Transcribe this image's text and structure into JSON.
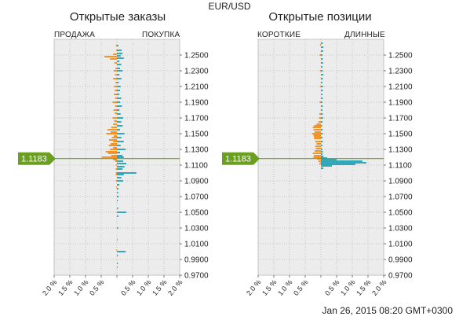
{
  "header": {
    "title": "EUR/USD"
  },
  "footer": {
    "timestamp": "Jan 26, 2015 08:20 GMT+0300"
  },
  "colors": {
    "sell": "#f28a14",
    "buy": "#1fa0b4",
    "marker": "#6aa01e",
    "plot_bg": "#ececec",
    "grid": "#b5b5b5"
  },
  "chart_data": [
    {
      "type": "bar",
      "orientation": "horizontal-diverging",
      "title": "Открытые заказы",
      "left_label": "ПРОДАЖА",
      "right_label": "ПОКУПКА",
      "ylim": [
        0.97,
        1.27
      ],
      "y_ticks": [
        "1.2500",
        "1.2300",
        "1.2100",
        "1.1900",
        "1.1700",
        "1.1500",
        "1.1300",
        "1.1100",
        "1.0900",
        "1.0700",
        "1.0500",
        "1.0300",
        "1.0100",
        "0.9900",
        "0.9700"
      ],
      "x_ticks": [
        "2.0 %",
        "1.5 %",
        "1.0 %",
        "0.5 %",
        "",
        "0.5 %",
        "1.0 %",
        "1.5 %",
        "2.0 %"
      ],
      "xlim_percent": [
        -2.0,
        2.0
      ],
      "current_price": "1.1183",
      "series": [
        {
          "name": "ПРОДАЖА",
          "points": [
            [
              1.262,
              0.03
            ],
            [
              1.256,
              0.02
            ],
            [
              1.251,
              0.12
            ],
            [
              1.248,
              0.4
            ],
            [
              1.245,
              0.22
            ],
            [
              1.24,
              0.08
            ],
            [
              1.233,
              0.05
            ],
            [
              1.23,
              0.1
            ],
            [
              1.225,
              0.06
            ],
            [
              1.22,
              0.12
            ],
            [
              1.215,
              0.05
            ],
            [
              1.21,
              0.09
            ],
            [
              1.205,
              0.07
            ],
            [
              1.2,
              0.1
            ],
            [
              1.195,
              0.06
            ],
            [
              1.19,
              0.14
            ],
            [
              1.185,
              0.06
            ],
            [
              1.18,
              0.11
            ],
            [
              1.176,
              0.07
            ],
            [
              1.17,
              0.14
            ],
            [
              1.166,
              0.09
            ],
            [
              1.162,
              0.12
            ],
            [
              1.158,
              0.18
            ],
            [
              1.155,
              0.3
            ],
            [
              1.152,
              0.2
            ],
            [
              1.15,
              0.34
            ],
            [
              1.147,
              0.1
            ],
            [
              1.145,
              0.16
            ],
            [
              1.142,
              0.25
            ],
            [
              1.14,
              0.12
            ],
            [
              1.137,
              0.2
            ],
            [
              1.135,
              0.26
            ],
            [
              1.132,
              0.12
            ],
            [
              1.13,
              0.22
            ],
            [
              1.127,
              0.36
            ],
            [
              1.125,
              0.28
            ],
            [
              1.122,
              0.18
            ],
            [
              1.12,
              0.48
            ],
            [
              1.117,
              0.12
            ],
            [
              1.115,
              0.05
            ],
            [
              1.11,
              0.03
            ],
            [
              1.105,
              0.04
            ],
            [
              1.1,
              0.03
            ],
            [
              1.098,
              0.04
            ],
            [
              1.09,
              0.03
            ],
            [
              1.082,
              0.02
            ],
            [
              1.05,
              0.01
            ],
            [
              1.002,
              0.02
            ]
          ]
        },
        {
          "name": "ПОКУПКА",
          "points": [
            [
              1.262,
              0.05
            ],
            [
              1.256,
              0.15
            ],
            [
              1.252,
              0.18
            ],
            [
              1.249,
              0.12
            ],
            [
              1.246,
              0.22
            ],
            [
              1.242,
              0.08
            ],
            [
              1.238,
              0.14
            ],
            [
              1.233,
              0.1
            ],
            [
              1.23,
              0.18
            ],
            [
              1.225,
              0.08
            ],
            [
              1.22,
              0.14
            ],
            [
              1.215,
              0.06
            ],
            [
              1.21,
              0.12
            ],
            [
              1.205,
              0.1
            ],
            [
              1.2,
              0.08
            ],
            [
              1.195,
              0.14
            ],
            [
              1.19,
              0.1
            ],
            [
              1.185,
              0.16
            ],
            [
              1.18,
              0.08
            ],
            [
              1.175,
              0.12
            ],
            [
              1.17,
              0.2
            ],
            [
              1.165,
              0.14
            ],
            [
              1.16,
              0.18
            ],
            [
              1.155,
              0.1
            ],
            [
              1.15,
              0.24
            ],
            [
              1.145,
              0.14
            ],
            [
              1.14,
              0.22
            ],
            [
              1.135,
              0.12
            ],
            [
              1.13,
              0.28
            ],
            [
              1.126,
              0.1
            ],
            [
              1.122,
              0.18
            ],
            [
              1.12,
              0.22
            ],
            [
              1.115,
              0.2
            ],
            [
              1.112,
              0.3
            ],
            [
              1.108,
              0.24
            ],
            [
              1.105,
              0.18
            ],
            [
              1.1,
              0.62
            ],
            [
              1.098,
              0.22
            ],
            [
              1.094,
              0.14
            ],
            [
              1.09,
              0.2
            ],
            [
              1.085,
              0.08
            ],
            [
              1.08,
              0.05
            ],
            [
              1.075,
              0.04
            ],
            [
              1.07,
              0.06
            ],
            [
              1.065,
              0.03
            ],
            [
              1.055,
              0.04
            ],
            [
              1.05,
              0.3
            ],
            [
              1.045,
              0.05
            ],
            [
              1.03,
              0.04
            ],
            [
              1.015,
              0.02
            ],
            [
              1.0,
              0.28
            ],
            [
              0.995,
              0.03
            ],
            [
              0.985,
              0.03
            ],
            [
              0.98,
              0.02
            ]
          ]
        }
      ]
    },
    {
      "type": "bar",
      "orientation": "horizontal-diverging",
      "title": "Открытые позиции",
      "left_label": "КОРОТКИЕ",
      "right_label": "ДЛИННЫЕ",
      "ylim": [
        0.97,
        1.27
      ],
      "y_ticks": [
        "1.2500",
        "1.2300",
        "1.2100",
        "1.1900",
        "1.1700",
        "1.1500",
        "1.1300",
        "1.1100",
        "1.0900",
        "1.0700",
        "1.0500",
        "1.0300",
        "1.0100",
        "0.9900",
        "0.9700"
      ],
      "x_ticks": [
        "2.0 %",
        "1.5 %",
        "1.0 %",
        "0.5 %",
        "",
        "0.5 %",
        "1.0 %",
        "1.5 %",
        "2.0 %"
      ],
      "xlim_percent": [
        -2.0,
        2.0
      ],
      "current_price": "1.1183",
      "series": [
        {
          "name": "КОРОТКИЕ",
          "points": [
            [
              1.263,
              0.03
            ],
            [
              1.25,
              0.04
            ],
            [
              1.23,
              0.03
            ],
            [
              1.21,
              0.03
            ],
            [
              1.19,
              0.04
            ],
            [
              1.175,
              0.05
            ],
            [
              1.17,
              0.06
            ],
            [
              1.165,
              0.08
            ],
            [
              1.162,
              0.14
            ],
            [
              1.16,
              0.22
            ],
            [
              1.158,
              0.26
            ],
            [
              1.155,
              0.24
            ],
            [
              1.152,
              0.2
            ],
            [
              1.15,
              0.28
            ],
            [
              1.148,
              0.24
            ],
            [
              1.146,
              0.22
            ],
            [
              1.144,
              0.22
            ],
            [
              1.14,
              0.18
            ],
            [
              1.137,
              0.14
            ],
            [
              1.134,
              0.18
            ],
            [
              1.131,
              0.16
            ],
            [
              1.128,
              0.2
            ],
            [
              1.125,
              0.26
            ],
            [
              1.122,
              0.22
            ],
            [
              1.12,
              0.24
            ],
            [
              1.118,
              0.12
            ],
            [
              1.115,
              0.08
            ],
            [
              1.112,
              0.05
            ]
          ]
        },
        {
          "name": "ДЛИННЫЕ",
          "points": [
            [
              1.265,
              0.06
            ],
            [
              1.26,
              0.08
            ],
            [
              1.255,
              0.07
            ],
            [
              1.25,
              0.05
            ],
            [
              1.245,
              0.06
            ],
            [
              1.24,
              0.07
            ],
            [
              1.235,
              0.05
            ],
            [
              1.23,
              0.06
            ],
            [
              1.225,
              0.08
            ],
            [
              1.22,
              0.06
            ],
            [
              1.215,
              0.05
            ],
            [
              1.21,
              0.07
            ],
            [
              1.205,
              0.06
            ],
            [
              1.2,
              0.05
            ],
            [
              1.195,
              0.06
            ],
            [
              1.19,
              0.05
            ],
            [
              1.185,
              0.06
            ],
            [
              1.18,
              0.05
            ],
            [
              1.175,
              0.06
            ],
            [
              1.17,
              0.07
            ],
            [
              1.165,
              0.05
            ],
            [
              1.16,
              0.04
            ],
            [
              1.155,
              0.05
            ],
            [
              1.15,
              0.06
            ],
            [
              1.145,
              0.05
            ],
            [
              1.14,
              0.06
            ],
            [
              1.135,
              0.05
            ],
            [
              1.13,
              0.05
            ],
            [
              1.127,
              0.06
            ],
            [
              1.124,
              0.05
            ],
            [
              1.121,
              0.08
            ],
            [
              1.119,
              0.2
            ],
            [
              1.117,
              0.5
            ],
            [
              1.115,
              1.32
            ],
            [
              1.113,
              1.45
            ],
            [
              1.111,
              1.1
            ],
            [
              1.109,
              0.35
            ],
            [
              1.106,
              0.08
            ]
          ]
        }
      ]
    }
  ]
}
